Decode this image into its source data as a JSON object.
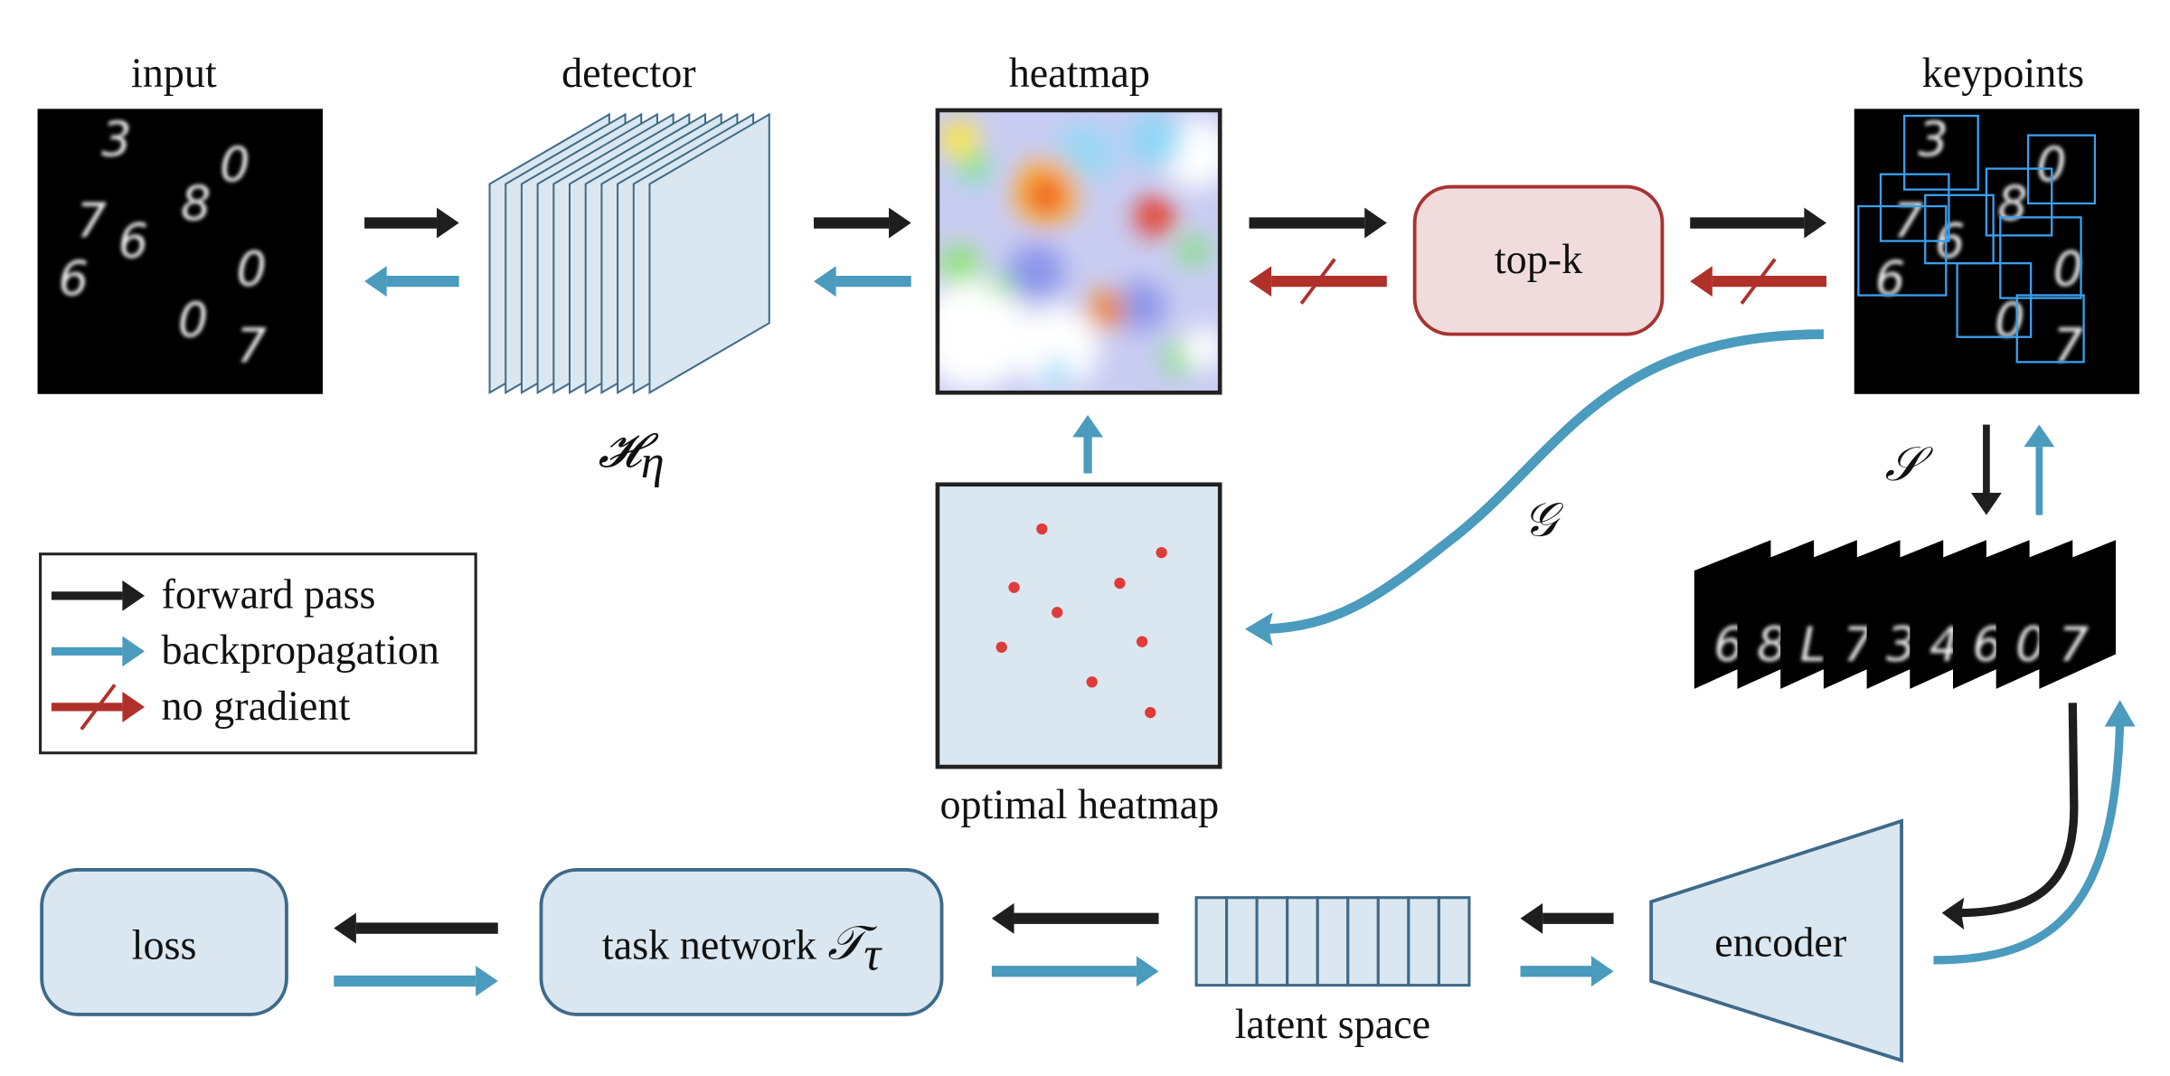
{
  "labels": {
    "input": "input",
    "detector": "detector",
    "detector_symbol": "𝓗",
    "detector_subscript": "η",
    "heatmap": "heatmap",
    "optimal_heatmap": "optimal heatmap",
    "topk": "top-k",
    "keypoints": "keypoints",
    "sampler_symbol": "𝒮",
    "generator_symbol": "𝒢",
    "encoder": "encoder",
    "latent_space": "latent space",
    "task_network": "task network",
    "task_symbol": "𝒯",
    "task_subscript": "τ",
    "loss": "loss"
  },
  "legend": {
    "items": [
      {
        "label": "forward pass",
        "type": "forward"
      },
      {
        "label": "backpropagation",
        "type": "backprop"
      },
      {
        "label": "no gradient",
        "type": "nograd"
      }
    ]
  },
  "input_digits": [
    "3",
    "7",
    "6",
    "8",
    "0",
    "6",
    "0",
    "0",
    "7"
  ],
  "patch_digits": [
    "6",
    "8",
    "L",
    "7",
    "3",
    "4",
    "6",
    "0",
    "7"
  ],
  "colors": {
    "forward": "#1e1e1e",
    "backprop": "#4a9bbd",
    "nograd": "#b0302a",
    "box_fill": "#dae7f0",
    "box_stroke": "#3f6a89",
    "topk_fill": "#f0dcdc",
    "optimal_points": "#e03a3a",
    "keypoint_box": "#3aa0f0"
  }
}
